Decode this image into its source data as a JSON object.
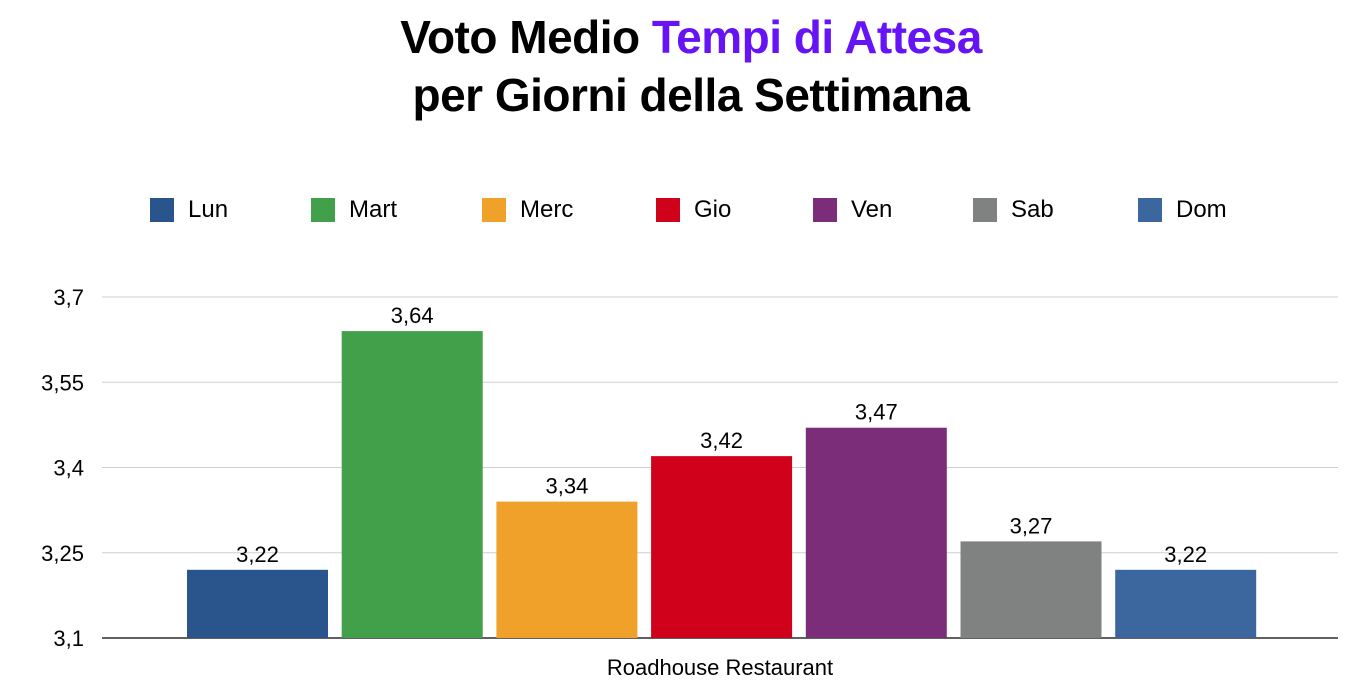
{
  "title": {
    "line1_prefix": "Voto Medio ",
    "line1_accent": "Tempi di Attesa",
    "line2": "per Giorni della Settimana",
    "accent_color": "#6614f5"
  },
  "chart_data": {
    "type": "bar",
    "categories": [
      "Roadhouse Restaurant"
    ],
    "series": [
      {
        "name": "Lun",
        "values": [
          3.22
        ],
        "label": "3,22",
        "color": "#2a558c"
      },
      {
        "name": "Mart",
        "values": [
          3.64
        ],
        "label": "3,64",
        "color": "#42a04a"
      },
      {
        "name": "Merc",
        "values": [
          3.34
        ],
        "label": "3,34",
        "color": "#f0a12a"
      },
      {
        "name": "Gio",
        "values": [
          3.42
        ],
        "label": "3,42",
        "color": "#d0021b"
      },
      {
        "name": "Ven",
        "values": [
          3.47
        ],
        "label": "3,47",
        "color": "#7b2d7a"
      },
      {
        "name": "Sab",
        "values": [
          3.27
        ],
        "label": "3,27",
        "color": "#808281"
      },
      {
        "name": "Dom",
        "values": [
          3.22
        ],
        "label": "3,22",
        "color": "#3b679e"
      }
    ],
    "title": "Voto Medio Tempi di Attesa per Giorni della Settimana",
    "xlabel": "Roadhouse Restaurant",
    "ylabel": "",
    "ylim": [
      3.1,
      3.7
    ],
    "yticks": [
      {
        "value": 3.1,
        "label": "3,1"
      },
      {
        "value": 3.25,
        "label": "3,25"
      },
      {
        "value": 3.4,
        "label": "3,4"
      },
      {
        "value": 3.55,
        "label": "3,55"
      },
      {
        "value": 3.7,
        "label": "3,7"
      }
    ],
    "grid": true,
    "legend_position": "top"
  }
}
